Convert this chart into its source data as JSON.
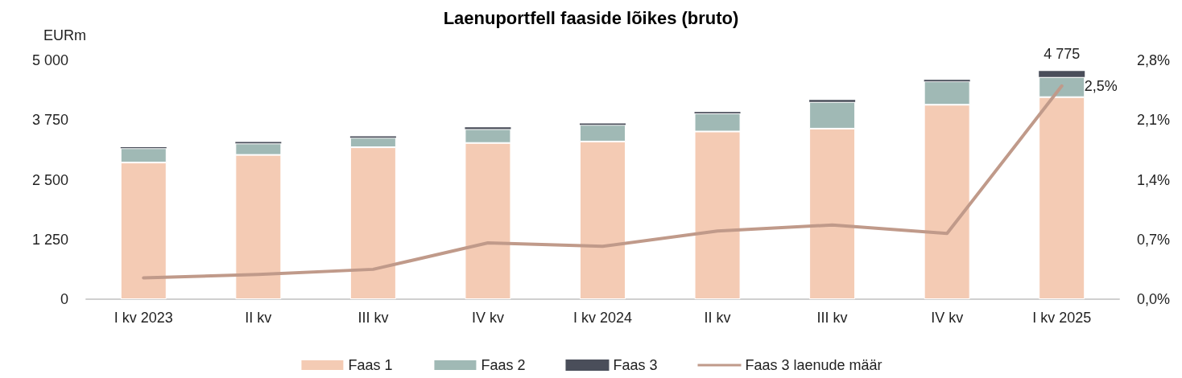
{
  "chart_data": {
    "type": "bar",
    "title": "Laenuportfell faaside lõikes (bruto)",
    "ylabel": "EURm",
    "categories": [
      "I kv 2023",
      "II kv",
      "III kv",
      "IV kv",
      "I kv 2024",
      "II kv",
      "III kv",
      "IV kv",
      "I kv 2025"
    ],
    "series": [
      {
        "name": "Faas 1",
        "color": "#f4cbb4",
        "values": [
          2860,
          3020,
          3180,
          3270,
          3300,
          3510,
          3570,
          4070,
          4230
        ]
      },
      {
        "name": "Faas 2",
        "color": "#a0b9b5",
        "values": [
          300,
          240,
          200,
          290,
          350,
          380,
          560,
          490,
          420
        ]
      },
      {
        "name": "Faas 3",
        "color": "#4a4e5a",
        "values": [
          20,
          30,
          30,
          40,
          30,
          30,
          40,
          30,
          125
        ]
      },
      {
        "name": "Faas 3 laenude määr",
        "type": "line",
        "axis": "y2",
        "color": "#c09a8a",
        "values": [
          0.25,
          0.29,
          0.35,
          0.66,
          0.62,
          0.8,
          0.87,
          0.77,
          2.5
        ],
        "value_labels": [
          null,
          null,
          null,
          null,
          null,
          null,
          null,
          null,
          "2,5%"
        ]
      }
    ],
    "stacked": true,
    "totals": [
      null,
      null,
      null,
      null,
      null,
      null,
      null,
      null,
      "4 775"
    ],
    "ylim": [
      0,
      5000
    ],
    "yticks": [
      0,
      {
        "value": 1250,
        "label": "1 250"
      },
      {
        "value": 2500,
        "label": "2 500"
      },
      {
        "value": 3750,
        "label": "3 750"
      },
      {
        "value": 5000,
        "label": "5 000"
      }
    ],
    "y2lim": [
      0,
      2.8
    ],
    "y2ticks": [
      {
        "value": 0,
        "label": "0,0%"
      },
      {
        "value": 0.7,
        "label": "0,7%"
      },
      {
        "value": 1.4,
        "label": "1,4%"
      },
      {
        "value": 2.1,
        "label": "2,1%"
      },
      {
        "value": 2.8,
        "label": "2,8%"
      }
    ],
    "grid": false,
    "legend": "bottom",
    "marker": "none",
    "line_style": "solid"
  }
}
